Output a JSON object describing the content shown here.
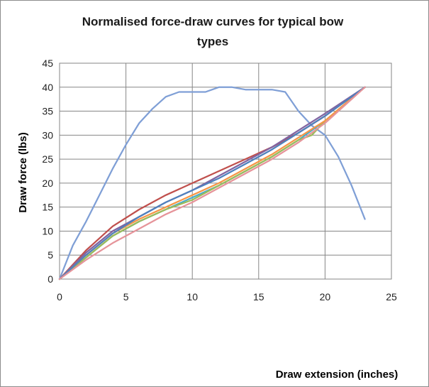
{
  "chart_data": {
    "type": "line",
    "title_lines": [
      "Normalised force-draw curves for typical bow",
      "types"
    ],
    "xlabel": "Draw extension (inches)",
    "ylabel": "Draw force (lbs)",
    "xlim": [
      0,
      25
    ],
    "ylim": [
      0,
      45
    ],
    "x_ticks": [
      "0",
      "5",
      "10",
      "15",
      "20",
      "25"
    ],
    "y_ticks": [
      "0",
      "5",
      "10",
      "15",
      "20",
      "25",
      "30",
      "35",
      "40",
      "45"
    ],
    "grid": true,
    "legend": "none",
    "series": [
      {
        "color": "#7f9fd6",
        "x": [
          0,
          1,
          2,
          3,
          4,
          5,
          6,
          7,
          8,
          9,
          10,
          11,
          12,
          13,
          14,
          15,
          16,
          17,
          18,
          19,
          20,
          21,
          22,
          23
        ],
        "y": [
          0,
          7,
          12,
          17.5,
          23,
          28,
          32.5,
          35.5,
          38,
          39,
          39,
          39,
          40,
          40,
          39.5,
          39.5,
          39.5,
          39,
          35,
          32,
          30,
          25.5,
          19.5,
          12.5
        ]
      },
      {
        "color": "#c0504d",
        "x": [
          0,
          2,
          4,
          6,
          8,
          10,
          12,
          14,
          16,
          18,
          20,
          23
        ],
        "y": [
          0,
          6,
          11,
          14.5,
          17.5,
          20,
          22.5,
          25,
          27.5,
          30.5,
          34,
          40
        ]
      },
      {
        "color": "#8064a2",
        "x": [
          0,
          2,
          4,
          6,
          8,
          10,
          12,
          14,
          16,
          18,
          20,
          23
        ],
        "y": [
          0,
          5.5,
          10,
          13,
          16,
          18.5,
          21.5,
          24.5,
          27.5,
          31,
          34.5,
          40
        ]
      },
      {
        "color": "#4bacc6",
        "x": [
          0,
          2,
          4,
          6,
          8,
          10,
          12,
          14,
          16,
          18,
          20,
          23
        ],
        "y": [
          0,
          4.5,
          9,
          12,
          14.5,
          17,
          19.5,
          22.5,
          25.5,
          29,
          33,
          40
        ]
      },
      {
        "color": "#9bbb59",
        "x": [
          0,
          2,
          4,
          6,
          8,
          10,
          12,
          14,
          16,
          18,
          19,
          20,
          23
        ],
        "y": [
          0,
          4.5,
          9,
          12,
          14.5,
          16.5,
          19.5,
          22.5,
          25.5,
          29,
          30,
          33,
          40
        ]
      },
      {
        "color": "#f79646",
        "x": [
          0,
          2,
          4,
          6,
          8,
          10,
          12,
          14,
          16,
          18,
          20,
          23
        ],
        "y": [
          0,
          5,
          9.5,
          12.5,
          15,
          17.5,
          20,
          23,
          26,
          29.5,
          33,
          40
        ]
      },
      {
        "color": "#4f81bd",
        "x": [
          0,
          2,
          4,
          6,
          8,
          10,
          12,
          14,
          16,
          18,
          20,
          23
        ],
        "y": [
          0,
          5,
          9.5,
          13,
          16,
          18.5,
          21,
          24,
          27,
          30.5,
          34,
          40
        ]
      },
      {
        "color": "#e6949a",
        "x": [
          0,
          2,
          4,
          6,
          8,
          10,
          12,
          14,
          16,
          18,
          20,
          23
        ],
        "y": [
          0,
          4,
          7.5,
          10.5,
          13.5,
          16,
          19,
          22,
          25,
          28.5,
          32.5,
          40
        ]
      }
    ]
  }
}
